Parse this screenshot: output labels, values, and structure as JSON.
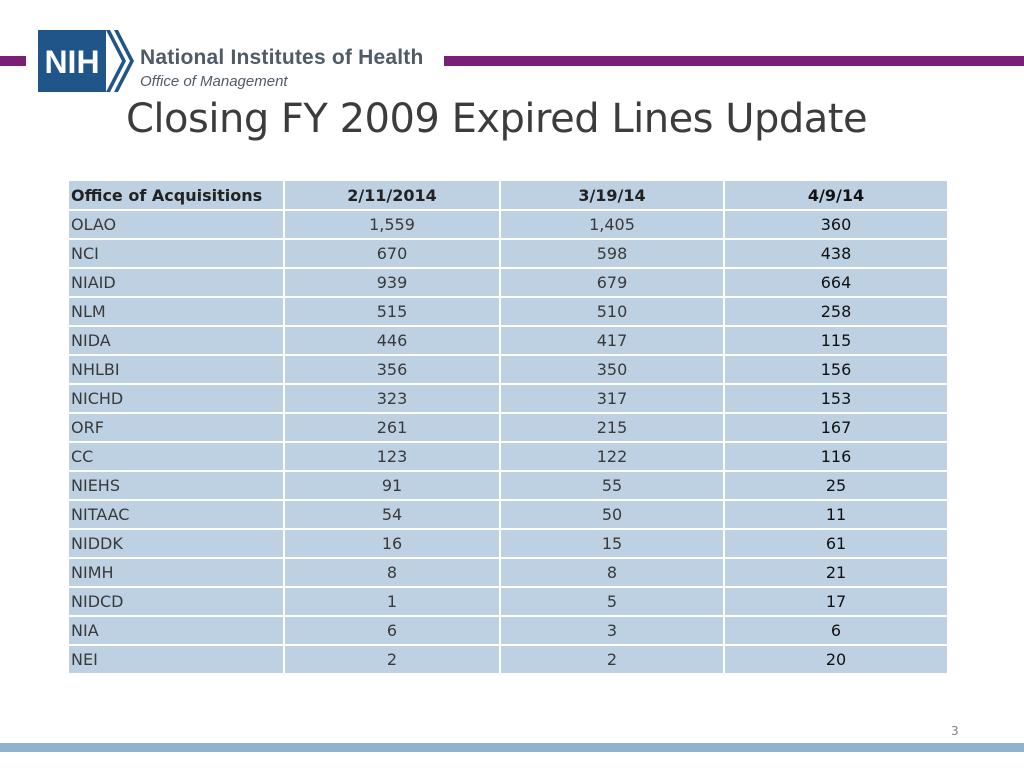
{
  "header": {
    "logo_text": "NIH",
    "org_name": "National Institutes of Health",
    "org_sub": "Office of Management"
  },
  "slide": {
    "title": "Closing FY 2009 Expired Lines Update",
    "page_number": "3"
  },
  "colors": {
    "accent_purple": "#7a1f78",
    "logo_blue": "#20558a",
    "table_cell": "#bdd1e2",
    "footer_bar": "#8fb3cc"
  },
  "table": {
    "headers": [
      "Office of Acquisitions",
      "2/11/2014",
      "3/19/14",
      "4/9/14"
    ],
    "rows": [
      [
        "OLAO",
        "1,559",
        "1,405",
        "360"
      ],
      [
        "NCI",
        "670",
        "598",
        "438"
      ],
      [
        "NIAID",
        "939",
        "679",
        "664"
      ],
      [
        "NLM",
        "515",
        "510",
        "258"
      ],
      [
        "NIDA",
        "446",
        "417",
        "115"
      ],
      [
        "NHLBI",
        "356",
        "350",
        "156"
      ],
      [
        "NICHD",
        "323",
        "317",
        "153"
      ],
      [
        "ORF",
        "261",
        "215",
        "167"
      ],
      [
        "CC",
        "123",
        "122",
        "116"
      ],
      [
        "NIEHS",
        "91",
        "55",
        "25"
      ],
      [
        "NITAAC",
        "54",
        "50",
        "11"
      ],
      [
        "NIDDK",
        "16",
        "15",
        "61"
      ],
      [
        "NIMH",
        "8",
        "8",
        "21"
      ],
      [
        "NIDCD",
        "1",
        "5",
        "17"
      ],
      [
        "NIA",
        "6",
        "3",
        "6"
      ],
      [
        "NEI",
        "2",
        "2",
        "20"
      ]
    ]
  }
}
